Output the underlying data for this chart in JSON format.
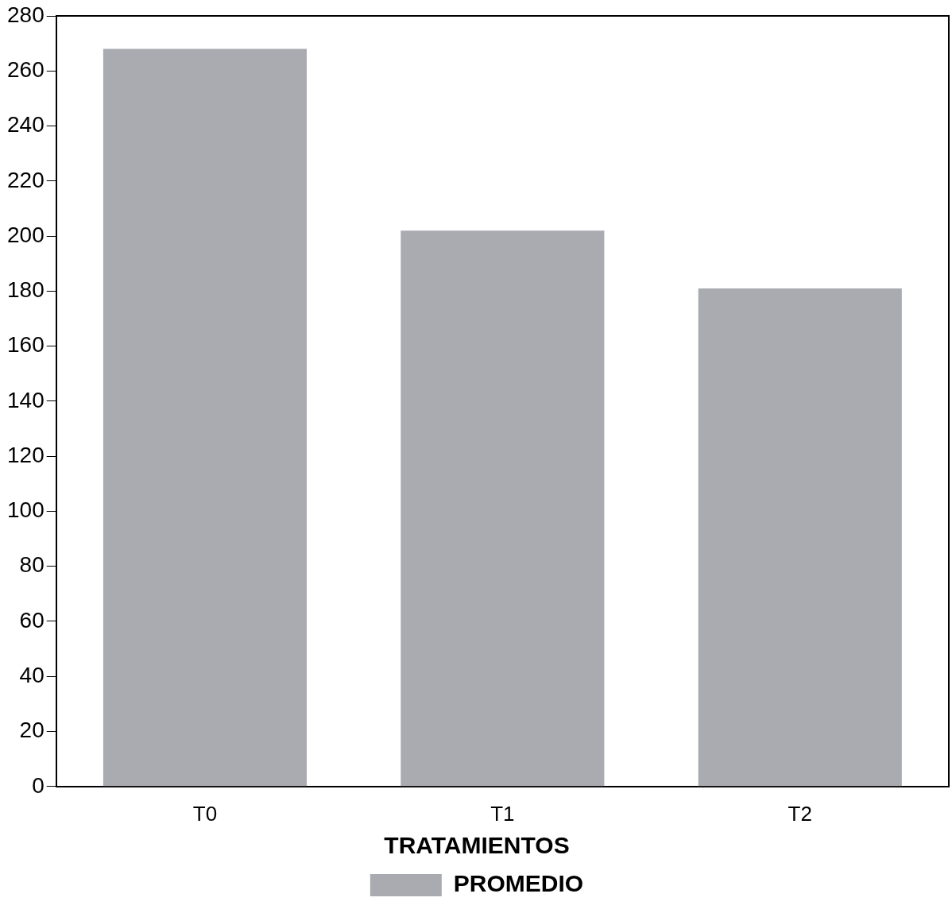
{
  "chart_data": {
    "type": "bar",
    "categories": [
      "T0",
      "T1",
      "T2"
    ],
    "series": [
      {
        "name": "PROMEDIO",
        "color": "#a9abb0",
        "values": [
          268,
          202,
          181
        ]
      }
    ],
    "ylim": [
      0,
      280
    ],
    "yticks": [
      0,
      20,
      40,
      60,
      80,
      100,
      120,
      140,
      160,
      180,
      200,
      220,
      240,
      260,
      280
    ],
    "legend_title": "TRATAMIENTOS",
    "legend": "bottom",
    "grid": false
  }
}
